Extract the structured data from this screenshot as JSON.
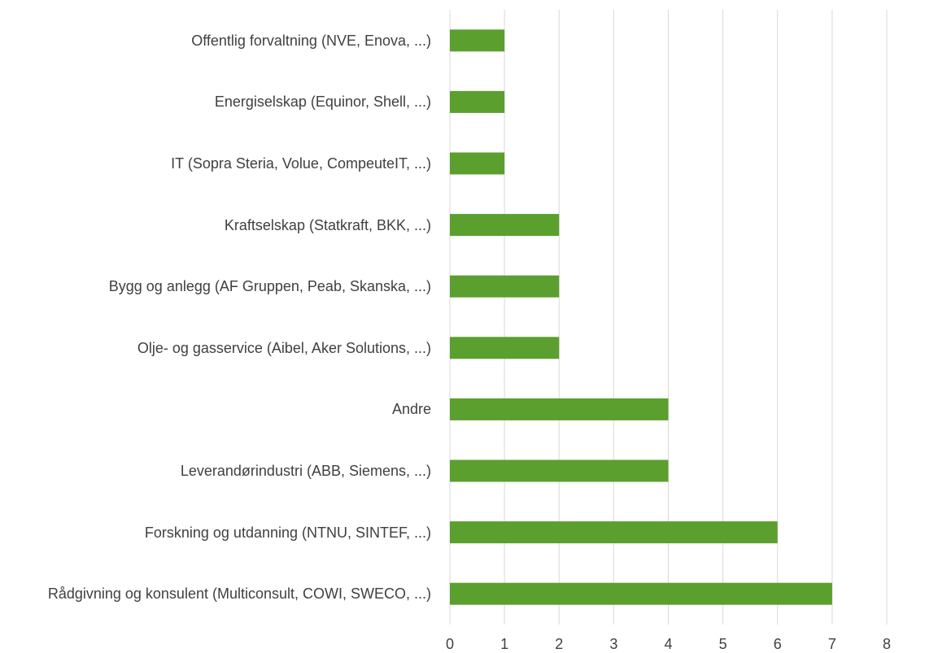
{
  "chart_data": {
    "type": "bar",
    "orientation": "horizontal",
    "categories": [
      "Offentlig forvaltning (NVE, Enova, ...)",
      "Energiselskap (Equinor, Shell, ...)",
      "IT (Sopra Steria, Volue, CompeuteIT, ...)",
      "Kraftselskap (Statkraft, BKK, ...)",
      "Bygg og anlegg (AF Gruppen, Peab, Skanska, ...)",
      "Olje- og gasservice (Aibel, Aker Solutions, ...)",
      "Andre",
      "Leverandørindustri (ABB, Siemens, ...)",
      "Forskning og utdanning (NTNU, SINTEF, ...)",
      "Rådgivning og konsulent (Multiconsult, COWI, SWECO, ...)"
    ],
    "values": [
      1,
      1,
      1,
      2,
      2,
      2,
      4,
      4,
      6,
      7
    ],
    "color": "#5b9f2f",
    "xlim": [
      0,
      8
    ],
    "xticks": [
      0,
      1,
      2,
      3,
      4,
      5,
      6,
      7,
      8
    ],
    "grid": true
  }
}
